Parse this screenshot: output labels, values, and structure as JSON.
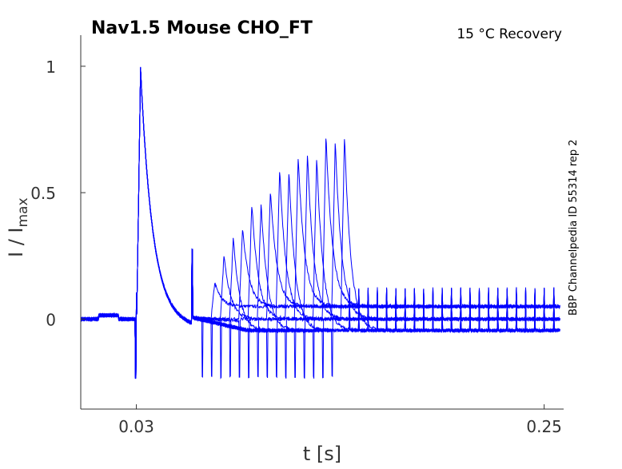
{
  "chart_data": {
    "type": "line",
    "title": "Nav1.5  Mouse  CHO_FT",
    "subtitle": "15 °C  Recovery",
    "side_label": "BBP Channelpedia ID 55314 rep 2",
    "xlabel": "t [s]",
    "ylabel_main": "I / I",
    "ylabel_sub": "max",
    "xlim": [
      0,
      0.2605
    ],
    "ylim": [
      -0.356,
      1.123
    ],
    "xticks": [
      {
        "value": 0.03,
        "label": "0.03"
      },
      {
        "value": 0.25,
        "label": "0.25"
      }
    ],
    "yticks": [
      {
        "value": 0,
        "label": "0"
      },
      {
        "value": 0.5,
        "label": "0.5"
      },
      {
        "value": 1,
        "label": "1"
      }
    ],
    "line_color": "#0000ff",
    "conditioning_peak": {
      "t": 0.0322,
      "value": 1.0
    },
    "recovery_peaks": [
      {
        "t": 0.0723,
        "value": 0.145
      },
      {
        "t": 0.0773,
        "value": 0.255
      },
      {
        "t": 0.0823,
        "value": 0.325
      },
      {
        "t": 0.0873,
        "value": 0.363
      },
      {
        "t": 0.0923,
        "value": 0.46
      },
      {
        "t": 0.0973,
        "value": 0.46
      },
      {
        "t": 0.1023,
        "value": 0.514
      },
      {
        "t": 0.1073,
        "value": 0.6
      },
      {
        "t": 0.1123,
        "value": 0.59
      },
      {
        "t": 0.1173,
        "value": 0.644
      },
      {
        "t": 0.1223,
        "value": 0.662
      },
      {
        "t": 0.1273,
        "value": 0.647
      },
      {
        "t": 0.1323,
        "value": 0.728
      },
      {
        "t": 0.1373,
        "value": 0.71
      },
      {
        "t": 0.1423,
        "value": 0.73
      }
    ]
  }
}
